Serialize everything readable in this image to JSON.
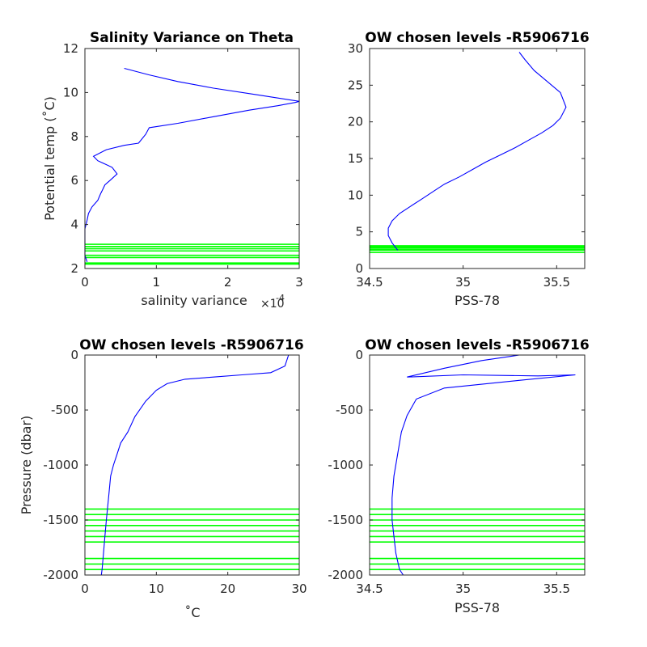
{
  "colors": {
    "profile": "#0000ff",
    "chosen_levels": "#00ff00",
    "axes": "#262626"
  },
  "chart_data": [
    {
      "type": "line",
      "title": "Salinity Variance on Theta",
      "xlabel": "salinity variance",
      "x_exponent_label": "×10",
      "x_exponent_value": "-4",
      "ylabel": "Potential temp (˚C)",
      "xlim": [
        0,
        3
      ],
      "ylim": [
        2,
        12
      ],
      "xticks": [
        "0",
        "1",
        "2",
        "3"
      ],
      "yticks": [
        "2",
        "4",
        "6",
        "8",
        "10",
        "12"
      ],
      "series": [
        {
          "x": [
            0.03,
            0.0,
            0.0,
            0.0,
            0.0,
            0.03,
            0.05,
            0.1,
            0.18,
            0.22,
            0.25,
            0.28,
            0.35,
            0.45,
            0.38,
            0.18,
            0.12,
            0.3,
            0.55,
            0.75,
            0.85,
            0.9,
            1.3,
            1.8,
            2.3,
            2.7,
            2.95,
            3.0,
            2.4,
            1.8,
            1.3,
            0.9,
            0.55
          ],
          "y": [
            2.3,
            2.6,
            3.0,
            3.4,
            3.8,
            4.2,
            4.5,
            4.8,
            5.1,
            5.4,
            5.6,
            5.8,
            6.0,
            6.3,
            6.6,
            6.9,
            7.1,
            7.4,
            7.6,
            7.7,
            8.1,
            8.4,
            8.6,
            8.9,
            9.2,
            9.4,
            9.55,
            9.6,
            9.9,
            10.2,
            10.5,
            10.8,
            11.1
          ]
        }
      ],
      "hlines": [
        2.2,
        2.25,
        2.5,
        2.6,
        2.8,
        2.9,
        3.0,
        3.1
      ]
    },
    {
      "type": "line",
      "title": "OW chosen levels -R5906716",
      "xlabel": "PSS-78",
      "ylabel": "",
      "xlim": [
        34.5,
        35.65
      ],
      "ylim": [
        0,
        30
      ],
      "xticks": [
        "34.5",
        "35",
        "35.5"
      ],
      "yticks": [
        "0",
        "5",
        "10",
        "15",
        "20",
        "25",
        "30"
      ],
      "series": [
        {
          "x": [
            34.65,
            34.62,
            34.6,
            34.6,
            34.62,
            34.66,
            34.72,
            34.78,
            34.84,
            34.9,
            34.98,
            35.05,
            35.12,
            35.2,
            35.28,
            35.35,
            35.42,
            35.48,
            35.52,
            35.55,
            35.52,
            35.45,
            35.38,
            35.33,
            35.3
          ],
          "y": [
            2.5,
            3.5,
            4.5,
            5.5,
            6.5,
            7.5,
            8.5,
            9.5,
            10.5,
            11.5,
            12.5,
            13.5,
            14.5,
            15.5,
            16.5,
            17.5,
            18.5,
            19.5,
            20.5,
            22,
            24,
            25.5,
            27,
            28.5,
            29.5
          ]
        }
      ],
      "hlines": [
        2.2,
        2.5,
        2.6,
        2.8,
        2.9,
        3.0,
        3.1
      ]
    },
    {
      "type": "line",
      "title": "OW chosen levels -R5906716",
      "xlabel": "˚C",
      "ylabel": "Pressure (dbar)",
      "xlim": [
        0,
        30
      ],
      "ylim": [
        -2000,
        0
      ],
      "xticks": [
        "0",
        "10",
        "20",
        "30"
      ],
      "yticks": [
        "-2000",
        "-1500",
        "-1000",
        "-500",
        "0"
      ],
      "series": [
        {
          "x": [
            28.5,
            28.0,
            26.0,
            22.0,
            18.0,
            14.0,
            11.5,
            10.0,
            8.5,
            7.0,
            6.0,
            5.0,
            4.5,
            4.0,
            3.6,
            3.3,
            3.0,
            2.8,
            2.6,
            2.4,
            2.3
          ],
          "y": [
            0,
            -100,
            -160,
            -180,
            -200,
            -220,
            -260,
            -320,
            -420,
            -560,
            -700,
            -800,
            -900,
            -1000,
            -1100,
            -1300,
            -1500,
            -1650,
            -1800,
            -1950,
            -2000
          ]
        }
      ],
      "hlines": [
        -1400,
        -1450,
        -1500,
        -1550,
        -1600,
        -1650,
        -1700,
        -1850,
        -1900,
        -1950
      ]
    },
    {
      "type": "line",
      "title": "OW chosen levels -R5906716",
      "xlabel": "PSS-78",
      "ylabel": "",
      "xlim": [
        34.5,
        35.65
      ],
      "ylim": [
        -2000,
        0
      ],
      "xticks": [
        "34.5",
        "35",
        "35.5"
      ],
      "yticks": [
        "-2000",
        "-1500",
        "-1000",
        "-500",
        "0"
      ],
      "series": [
        {
          "x": [
            35.3,
            35.1,
            34.9,
            34.7,
            35.0,
            35.4,
            35.6,
            35.3,
            34.9,
            34.75,
            34.7,
            34.67,
            34.65,
            34.63,
            34.62,
            34.62,
            34.63,
            34.64,
            34.66,
            34.68
          ],
          "y": [
            0,
            -50,
            -120,
            -200,
            -180,
            -190,
            -180,
            -230,
            -300,
            -400,
            -550,
            -700,
            -900,
            -1100,
            -1300,
            -1500,
            -1650,
            -1800,
            -1950,
            -2000
          ]
        }
      ],
      "hlines": [
        -1400,
        -1450,
        -1500,
        -1550,
        -1600,
        -1650,
        -1700,
        -1850,
        -1900,
        -1950
      ]
    }
  ]
}
